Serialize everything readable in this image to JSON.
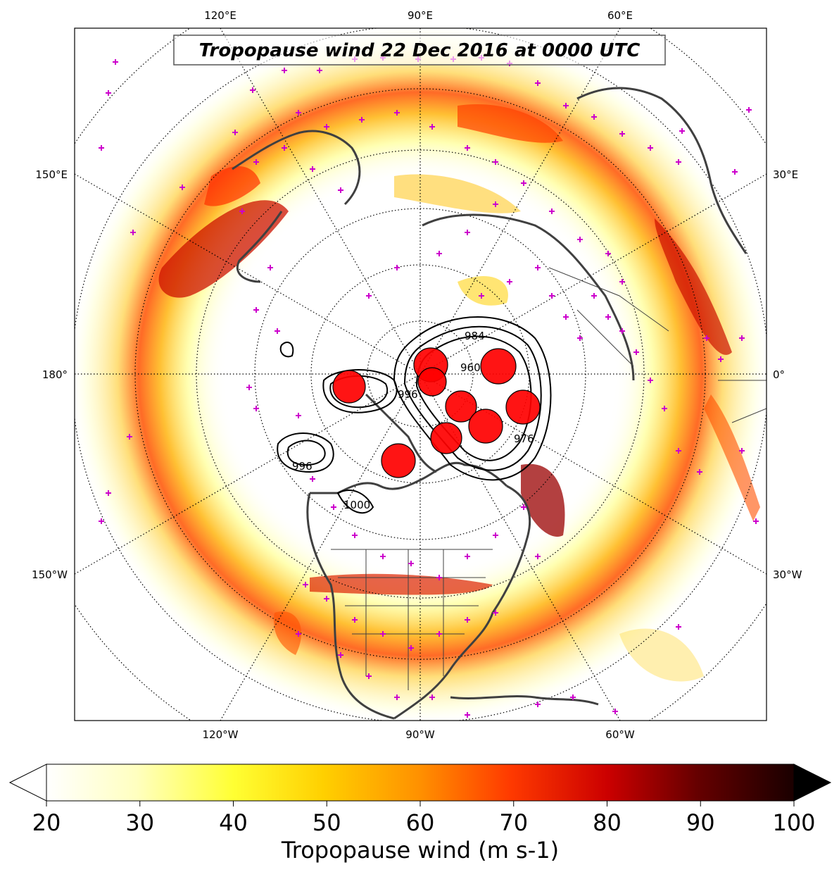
{
  "title": "Tropopause wind 22 Dec 2016 at 0000 UTC",
  "lon_labels_top": [
    "120°E",
    "90°E",
    "60°E"
  ],
  "lon_labels_bottom": [
    "120°W",
    "90°W",
    "60°W"
  ],
  "lon_labels_left": [
    "150°E",
    "180°",
    "150°W"
  ],
  "lon_labels_right": [
    "30°E",
    "0°",
    "30°W"
  ],
  "contour_labels": [
    "984",
    "996",
    "996",
    "1000",
    "960",
    "976"
  ],
  "colorbar": {
    "label": "Tropopause wind (m s-1)",
    "ticks": [
      "20",
      "30",
      "40",
      "50",
      "60",
      "70",
      "80",
      "90",
      "100"
    ],
    "min": 20,
    "max": 100,
    "extend": "both"
  },
  "colors": {
    "observation_marker": "#cc00cc",
    "coastline": "#404040",
    "contour": "#000000",
    "minimum_marker": "#ff0000"
  }
}
